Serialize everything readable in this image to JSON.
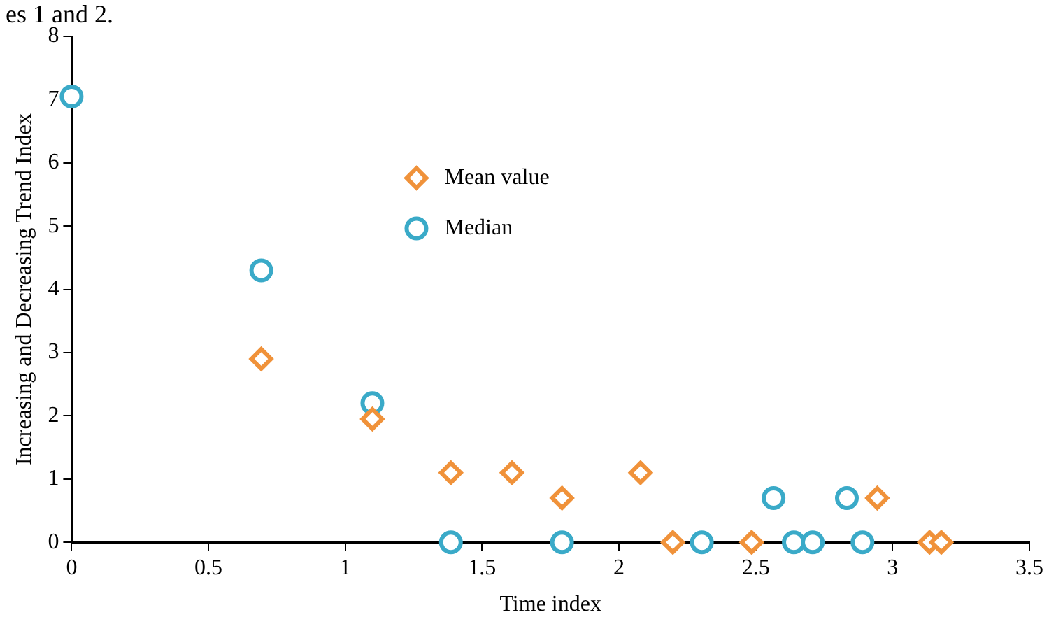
{
  "chart_data": {
    "type": "scatter",
    "xlabel": "Time index",
    "ylabel": "Increasing and Decreasing Trend Index",
    "annotations": [
      "es 1 and 2."
    ],
    "series": [
      {
        "name": "Mean value",
        "color": "#f0923a",
        "marker": "diamond",
        "x": [
          0.693,
          1.099,
          1.386,
          1.609,
          1.792,
          2.079,
          2.197,
          2.485,
          2.944,
          3.135,
          3.178
        ],
        "values": [
          2.9,
          1.95,
          1.1,
          1.1,
          0.7,
          1.1,
          0,
          0,
          0.7,
          0,
          0
        ]
      },
      {
        "name": "Median",
        "color": "#3aaac8",
        "marker": "circle",
        "x": [
          0,
          0.693,
          1.099,
          1.386,
          1.792,
          2.303,
          2.565,
          2.639,
          2.708,
          2.833,
          2.89
        ],
        "values": [
          7.05,
          4.3,
          2.2,
          0,
          0,
          0,
          0.7,
          0,
          0,
          0.7,
          0
        ]
      }
    ],
    "xlim": [
      0,
      3.5
    ],
    "xticks": [
      0,
      0.5,
      1,
      1.5,
      2,
      2.5,
      3,
      3.5
    ],
    "ylim": [
      0,
      8
    ],
    "yticks": [
      0,
      1,
      2,
      3,
      4,
      5,
      6,
      7,
      8
    ],
    "grid": false,
    "legend": "top center"
  }
}
